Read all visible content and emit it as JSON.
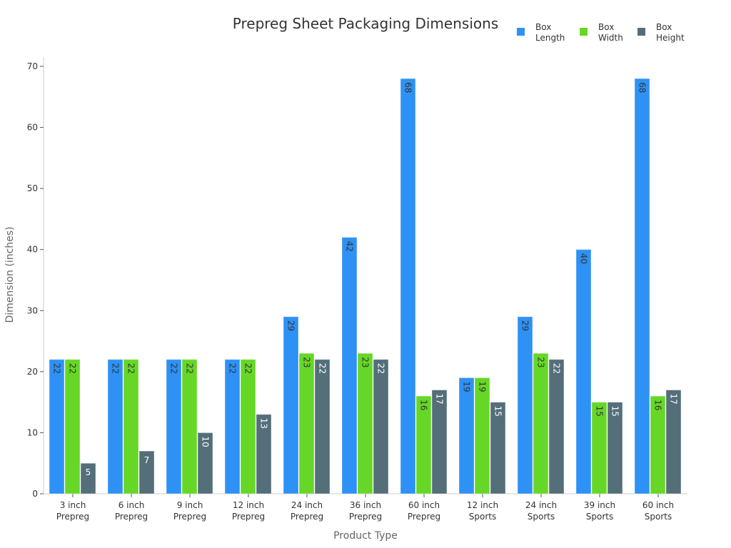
{
  "chart_data": {
    "type": "bar",
    "title": "Prepreg Sheet Packaging Dimensions",
    "xlabel": "Product Type",
    "ylabel": "Dimension (inches)",
    "ylim": [
      0,
      70
    ],
    "yticks": [
      0,
      10,
      20,
      30,
      40,
      50,
      60,
      70
    ],
    "grid": false,
    "legend_position": "top-right",
    "categories": [
      [
        "3 inch",
        "Prepreg"
      ],
      [
        "6 inch",
        "Prepreg"
      ],
      [
        "9 inch",
        "Prepreg"
      ],
      [
        "12 inch",
        "Prepreg"
      ],
      [
        "24 inch",
        "Prepreg"
      ],
      [
        "36 inch",
        "Prepreg"
      ],
      [
        "60 inch",
        "Prepreg"
      ],
      [
        "12 inch",
        "Sports"
      ],
      [
        "24 inch",
        "Sports"
      ],
      [
        "39 inch",
        "Sports"
      ],
      [
        "60 inch",
        "Sports"
      ]
    ],
    "series": [
      {
        "name": [
          "Box",
          "Length"
        ],
        "color": "#2e91f5",
        "label_color": "#333333",
        "values": [
          22,
          22,
          22,
          22,
          29,
          42,
          68,
          19,
          29,
          40,
          68
        ]
      },
      {
        "name": [
          "Box",
          "Width"
        ],
        "color": "#66d726",
        "label_color": "#333333",
        "values": [
          22,
          22,
          22,
          22,
          23,
          23,
          16,
          19,
          23,
          15,
          16
        ]
      },
      {
        "name": [
          "Box",
          "Height"
        ],
        "color": "#546e7a",
        "label_color": "#ffffff",
        "values": [
          5,
          7,
          10,
          13,
          22,
          22,
          17,
          15,
          22,
          15,
          17
        ]
      }
    ]
  }
}
